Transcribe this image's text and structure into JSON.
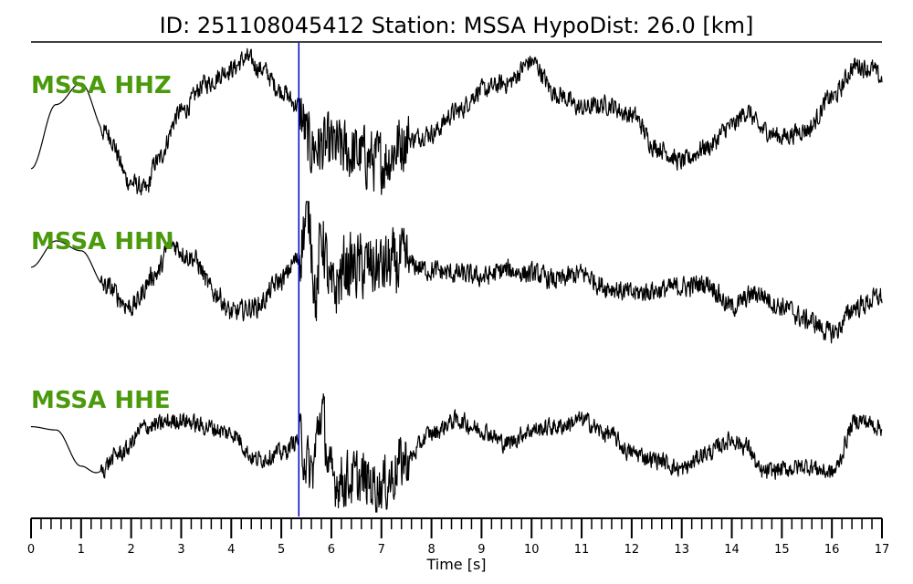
{
  "chart_data": {
    "type": "line",
    "title": "ID: 251108045412   Station: MSSA   HypoDist:    26.0 [km]",
    "xlabel": "Time [s]",
    "ylabel": "",
    "xlim": [
      0,
      17
    ],
    "x_ticks": [
      "0",
      "1",
      "2",
      "3",
      "4",
      "5",
      "6",
      "7",
      "8",
      "9",
      "10",
      "11",
      "12",
      "13",
      "14",
      "15",
      "16",
      "17"
    ],
    "minor_tick_step": 0.2,
    "grid": false,
    "pick_time": 5.35,
    "colors": {
      "trace": "#000000",
      "pick_line": "#0000cc",
      "channel_label": "#4a9a0c",
      "title_rule": "#000000"
    },
    "series": [
      {
        "name": "MSSA HHZ",
        "x": [
          0,
          0.5,
          1,
          1.5,
          2,
          2.3,
          2.5,
          3,
          3.5,
          4,
          4.3,
          4.6,
          5,
          5.3,
          5.6,
          6,
          6.5,
          7,
          7.5,
          8,
          8.5,
          9,
          9.5,
          10,
          10.5,
          11,
          11.5,
          12,
          12.5,
          13,
          13.5,
          14,
          14.3,
          14.6,
          15,
          15.5,
          16,
          16.5,
          16.8,
          17
        ],
        "values": [
          -0.6,
          0.3,
          0.6,
          -0.1,
          -0.8,
          -0.9,
          -0.5,
          0.2,
          0.6,
          0.8,
          0.95,
          0.8,
          0.5,
          0.3,
          -0.3,
          -0.3,
          -0.4,
          -0.5,
          -0.2,
          -0.1,
          0.2,
          0.5,
          0.6,
          0.9,
          0.45,
          0.25,
          0.3,
          0.15,
          -0.3,
          -0.5,
          -0.3,
          0.0,
          0.2,
          -0.05,
          -0.15,
          -0.05,
          0.4,
          0.85,
          0.8,
          0.65
        ],
        "noise": 0.12
      },
      {
        "name": "MSSA HHN",
        "x": [
          0,
          0.5,
          1,
          1.5,
          2,
          2.5,
          2.8,
          3.2,
          3.7,
          4,
          4.5,
          5,
          5.3,
          5.55,
          5.7,
          5.8,
          6,
          6.3,
          7,
          7.5,
          8,
          8.5,
          9,
          9.5,
          10,
          10.5,
          11,
          11.5,
          12,
          12.5,
          13,
          13.5,
          14,
          14.5,
          15,
          15.5,
          16,
          16.5,
          17
        ],
        "values": [
          0.1,
          0.5,
          0.35,
          -0.2,
          -0.5,
          0.0,
          0.45,
          0.25,
          -0.3,
          -0.6,
          -0.5,
          -0.1,
          0.2,
          0.9,
          -0.4,
          0.6,
          -0.3,
          0.1,
          0.1,
          0.15,
          0.05,
          0.0,
          -0.05,
          0.05,
          0.0,
          -0.1,
          0.0,
          -0.2,
          -0.3,
          -0.25,
          -0.2,
          -0.15,
          -0.5,
          -0.3,
          -0.5,
          -0.7,
          -0.9,
          -0.5,
          -0.35
        ],
        "noise": 0.14
      },
      {
        "name": "MSSA HHE",
        "x": [
          0,
          0.5,
          1,
          1.3,
          1.8,
          2.3,
          3,
          3.5,
          4,
          4.5,
          5,
          5.35,
          5.6,
          5.8,
          6,
          6.5,
          7,
          7.5,
          8,
          8.5,
          9,
          9.5,
          10,
          10.5,
          11,
          11.5,
          12,
          12.5,
          13,
          13.5,
          14,
          14.3,
          14.6,
          15,
          15.5,
          16,
          16.5,
          17
        ],
        "values": [
          0.2,
          0.15,
          -0.4,
          -0.5,
          -0.2,
          0.2,
          0.3,
          0.2,
          0.1,
          -0.3,
          -0.2,
          0.0,
          -0.5,
          0.4,
          -0.6,
          -0.6,
          -0.7,
          -0.3,
          0.1,
          0.3,
          0.15,
          -0.05,
          0.15,
          0.2,
          0.3,
          0.1,
          -0.2,
          -0.3,
          -0.45,
          -0.2,
          0.0,
          -0.1,
          -0.5,
          -0.45,
          -0.4,
          -0.5,
          0.3,
          0.2
        ],
        "noise": 0.12
      }
    ]
  }
}
